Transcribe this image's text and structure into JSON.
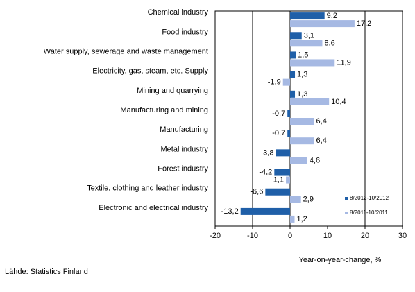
{
  "chart_data": {
    "type": "bar",
    "orientation": "horizontal",
    "categories": [
      "Chemical industry",
      "Food industry",
      "Water supply, sewerage and waste management",
      "Electricity, gas, steam, etc. Supply",
      "Mining and quarrying",
      "Manufacturing and mining",
      "Manufacturing",
      "Metal industry",
      "Forest industry",
      "Textile, clothing and leather industry",
      "Electronic and electrical industry"
    ],
    "series": [
      {
        "name": "8/2012-10/2012",
        "color": "#1f5fa8",
        "values": [
          9.2,
          3.1,
          1.5,
          1.3,
          1.3,
          -0.7,
          -0.7,
          -3.8,
          -4.2,
          -6.6,
          -13.2
        ],
        "labels": [
          "9,2",
          "3,1",
          "1,5",
          "1,3",
          "1,3",
          "-0,7",
          "-0,7",
          "-3,8",
          "-4,2",
          "-6,6",
          "-13,2"
        ]
      },
      {
        "name": "8/2011-10/2011",
        "color": "#a6b9e3",
        "values": [
          17.2,
          8.6,
          11.9,
          -1.9,
          10.4,
          6.4,
          6.4,
          4.6,
          -1.1,
          2.9,
          1.2
        ],
        "labels": [
          "17,2",
          "8,6",
          "11,9",
          "-1,9",
          "10,4",
          "6,4",
          "6,4",
          "4,6",
          "-1,1",
          "2,9",
          "1,2"
        ]
      }
    ],
    "xlim": [
      -20,
      30
    ],
    "xticks": [
      -20,
      -10,
      0,
      10,
      20,
      30
    ],
    "xtick_labels": [
      "-20",
      "-10",
      "0",
      "10",
      "20",
      "30"
    ],
    "xlabel": "Year-on-year-change, %",
    "grid": "vertical lines at -10 and 20",
    "legend_position": "bottom-right inside plot"
  },
  "source_note": "Lähde: Statistics Finland"
}
